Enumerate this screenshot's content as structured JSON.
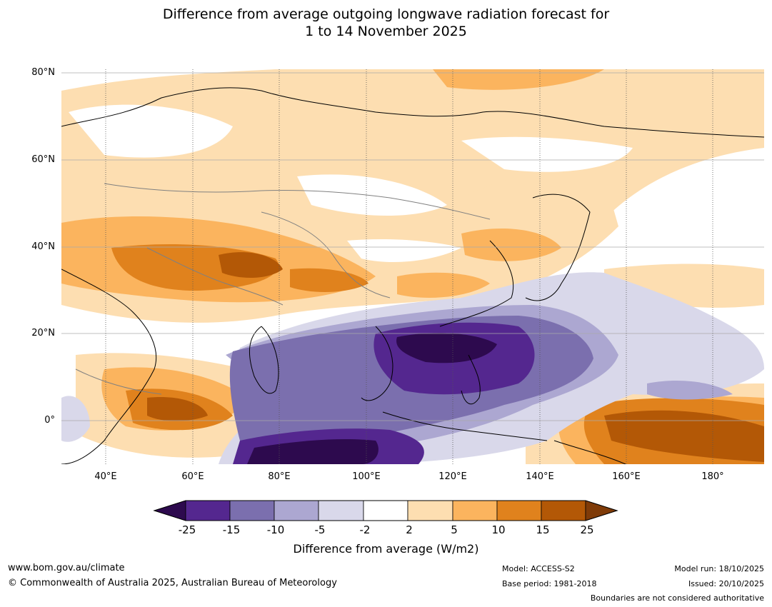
{
  "title": {
    "line1": "Difference from average outgoing longwave radiation forecast for",
    "line2": "1 to 14 November 2025"
  },
  "axes": {
    "lat_labels": [
      "80°N",
      "60°N",
      "40°N",
      "20°N",
      "0°"
    ],
    "lon_labels": [
      "40°E",
      "60°E",
      "80°E",
      "100°E",
      "120°E",
      "140°E",
      "160°E",
      "180°"
    ],
    "lat_range": [
      -10,
      80
    ],
    "lon_range": [
      30,
      190
    ]
  },
  "colorbar": {
    "title": "Difference from average (W/m2)",
    "ticks": [
      "-25",
      "-15",
      "-10",
      "-5",
      "-2",
      "2",
      "5",
      "10",
      "15",
      "25"
    ],
    "colors": [
      "#2d0a4e",
      "#54278f",
      "#7b6fae",
      "#aca7d1",
      "#d9d8ea",
      "#ffffff",
      "#fddeb1",
      "#fbb45e",
      "#e0821d",
      "#b35806",
      "#7f3b08"
    ],
    "levels": [
      -25,
      -15,
      -10,
      -5,
      -2,
      2,
      5,
      10,
      15,
      25
    ]
  },
  "footer": {
    "website": "www.bom.gov.au/climate",
    "copyright": "© Commonwealth of Australia 2025, Australian Bureau of Meteorology",
    "model": "Model: ACCESS-S2",
    "base_period": "Base period: 1981-2018",
    "model_run": "Model run: 18/10/2025",
    "issued": "Issued: 20/10/2025",
    "disclaimer": "Boundaries are not considered authoritative"
  },
  "colors": {
    "accent_negative": "#54278f",
    "accent_positive": "#e0821d"
  }
}
